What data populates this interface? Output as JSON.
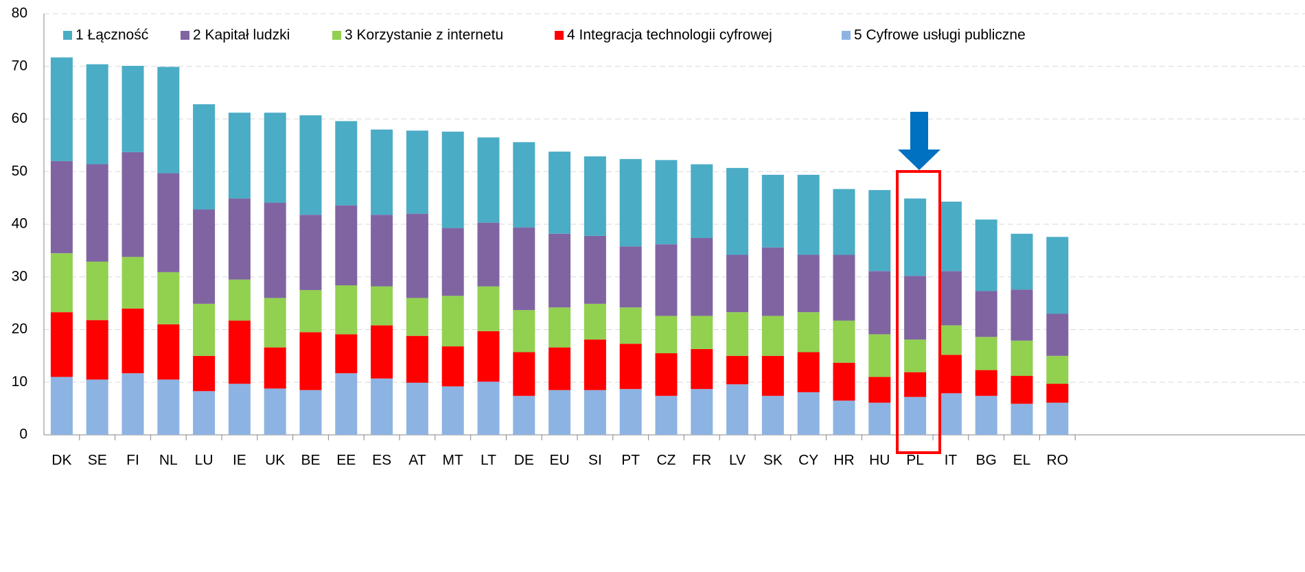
{
  "chart_data": {
    "type": "stacked_bar",
    "categories": [
      "DK",
      "SE",
      "FI",
      "NL",
      "LU",
      "IE",
      "UK",
      "BE",
      "EE",
      "ES",
      "AT",
      "MT",
      "LT",
      "DE",
      "EU",
      "SI",
      "PT",
      "CZ",
      "FR",
      "LV",
      "SK",
      "CY",
      "HR",
      "HU",
      "PL",
      "IT",
      "BG",
      "EL",
      "RO"
    ],
    "series": [
      {
        "name": "1 Łączność",
        "color": "#4bacc6",
        "values": [
          19.7,
          19.0,
          16.4,
          20.2,
          20.0,
          16.3,
          17.1,
          18.9,
          16.0,
          16.2,
          15.8,
          18.3,
          16.2,
          16.2,
          15.6,
          15.1,
          16.6,
          16.0,
          14.0,
          16.5,
          13.8,
          15.2,
          12.5,
          15.4,
          14.7,
          13.2,
          13.6,
          10.6,
          14.6
        ]
      },
      {
        "name": "2 Kapitał ludzki",
        "color": "#8064a2",
        "values": [
          17.5,
          18.5,
          19.9,
          18.8,
          17.9,
          15.4,
          18.1,
          14.3,
          15.2,
          13.6,
          16.0,
          12.9,
          12.1,
          15.7,
          14.0,
          12.9,
          11.6,
          13.6,
          14.8,
          10.9,
          13.0,
          10.9,
          12.5,
          12.0,
          12.1,
          10.3,
          8.7,
          9.7,
          8.0
        ]
      },
      {
        "name": "3 Korzystanie z internetu",
        "color": "#92d050",
        "values": [
          11.2,
          11.1,
          9.8,
          9.9,
          9.9,
          7.8,
          9.4,
          8.0,
          9.3,
          7.4,
          7.2,
          9.6,
          8.5,
          8.0,
          7.6,
          6.8,
          6.9,
          7.1,
          6.3,
          8.3,
          7.6,
          7.6,
          8.0,
          8.1,
          6.2,
          5.6,
          6.3,
          6.7,
          5.3
        ]
      },
      {
        "name": "4 Integracja technologii cyfrowej",
        "color": "#ff0000",
        "values": [
          12.3,
          11.3,
          12.3,
          10.5,
          6.7,
          12.0,
          7.8,
          11.0,
          7.4,
          10.1,
          8.9,
          7.6,
          9.6,
          8.3,
          8.1,
          9.6,
          8.6,
          8.1,
          7.6,
          5.4,
          7.6,
          7.6,
          7.2,
          4.9,
          4.7,
          7.3,
          4.9,
          5.3,
          3.6
        ]
      },
      {
        "name": "5 Cyfrowe usługi publiczne",
        "color": "#8db3e2",
        "values": [
          11.0,
          10.5,
          11.7,
          10.5,
          8.3,
          9.7,
          8.8,
          8.5,
          11.7,
          10.7,
          9.9,
          9.2,
          10.1,
          7.4,
          8.5,
          8.5,
          8.7,
          7.4,
          8.7,
          9.6,
          7.4,
          8.1,
          6.5,
          6.1,
          7.2,
          7.9,
          7.4,
          5.9,
          6.1
        ]
      }
    ],
    "ylim": [
      0,
      80
    ],
    "yticks": [
      0,
      10,
      20,
      30,
      40,
      50,
      60,
      70,
      80
    ],
    "grid": true
  }
}
